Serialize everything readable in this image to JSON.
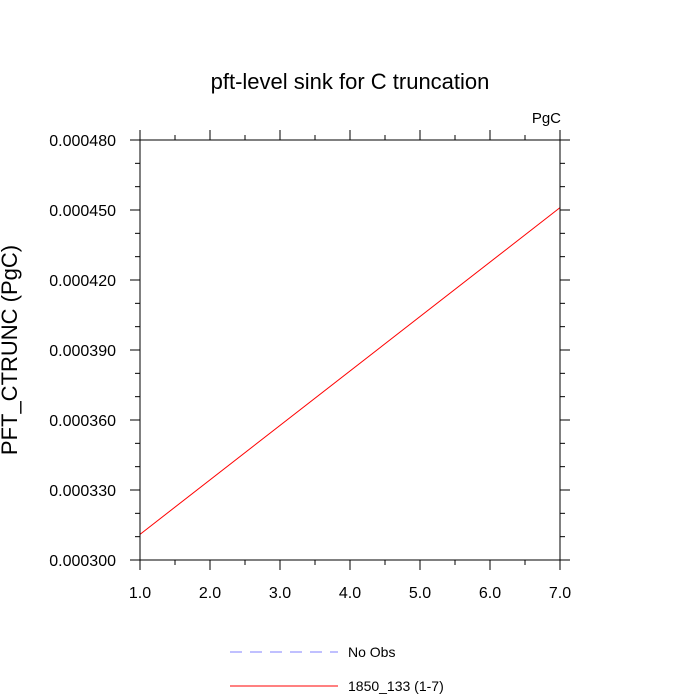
{
  "chart_data": {
    "type": "line",
    "title": "pft-level sink for C truncation",
    "units": "PgC",
    "ylabel": "PFT_CTRUNC  (PgC)",
    "xlabel": "",
    "xlim": [
      1.0,
      7.0
    ],
    "ylim": [
      0.0003,
      0.00048
    ],
    "x_ticks": [
      "1.0",
      "2.0",
      "3.0",
      "4.0",
      "5.0",
      "6.0",
      "7.0"
    ],
    "y_ticks": [
      "0.000300",
      "0.000330",
      "0.000360",
      "0.000390",
      "0.000420",
      "0.000450",
      "0.000480"
    ],
    "grid": false,
    "legend_position": "bottom",
    "series": [
      {
        "name": "No Obs",
        "color": "#8080ff",
        "dash": "dashed",
        "x": [],
        "y": []
      },
      {
        "name": "1850_133 (1-7)",
        "color": "#ff0000",
        "dash": "solid",
        "x": [
          1.0,
          7.0
        ],
        "y": [
          0.000311,
          0.000451
        ]
      }
    ]
  }
}
